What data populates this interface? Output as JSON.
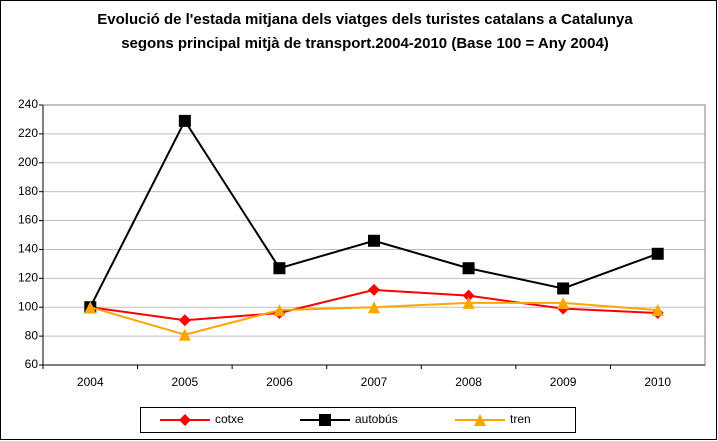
{
  "chart_data": {
    "type": "line",
    "title": "Evolució de l'estada mitjana dels viatges dels turistes catalans a Catalunya segons principal mitjà de transport.2004-2010 (Base 100 = Any 2004)",
    "categories": [
      "2004",
      "2005",
      "2006",
      "2007",
      "2008",
      "2009",
      "2010"
    ],
    "series": [
      {
        "name": "cotxe",
        "color": "#ff0000",
        "marker": "diamond",
        "values": [
          100,
          91,
          96,
          112,
          108,
          99,
          96
        ]
      },
      {
        "name": "autobús",
        "color": "#000000",
        "marker": "square",
        "values": [
          100,
          229,
          127,
          146,
          127,
          113,
          137
        ]
      },
      {
        "name": "tren",
        "color": "#ffa500",
        "marker": "triangle",
        "values": [
          100,
          81,
          98,
          100,
          103,
          103,
          98
        ]
      }
    ],
    "ylim": [
      60,
      240
    ],
    "yticks": [
      60,
      80,
      100,
      120,
      140,
      160,
      180,
      200,
      220,
      240
    ],
    "grid": true,
    "legend": "bottom"
  }
}
